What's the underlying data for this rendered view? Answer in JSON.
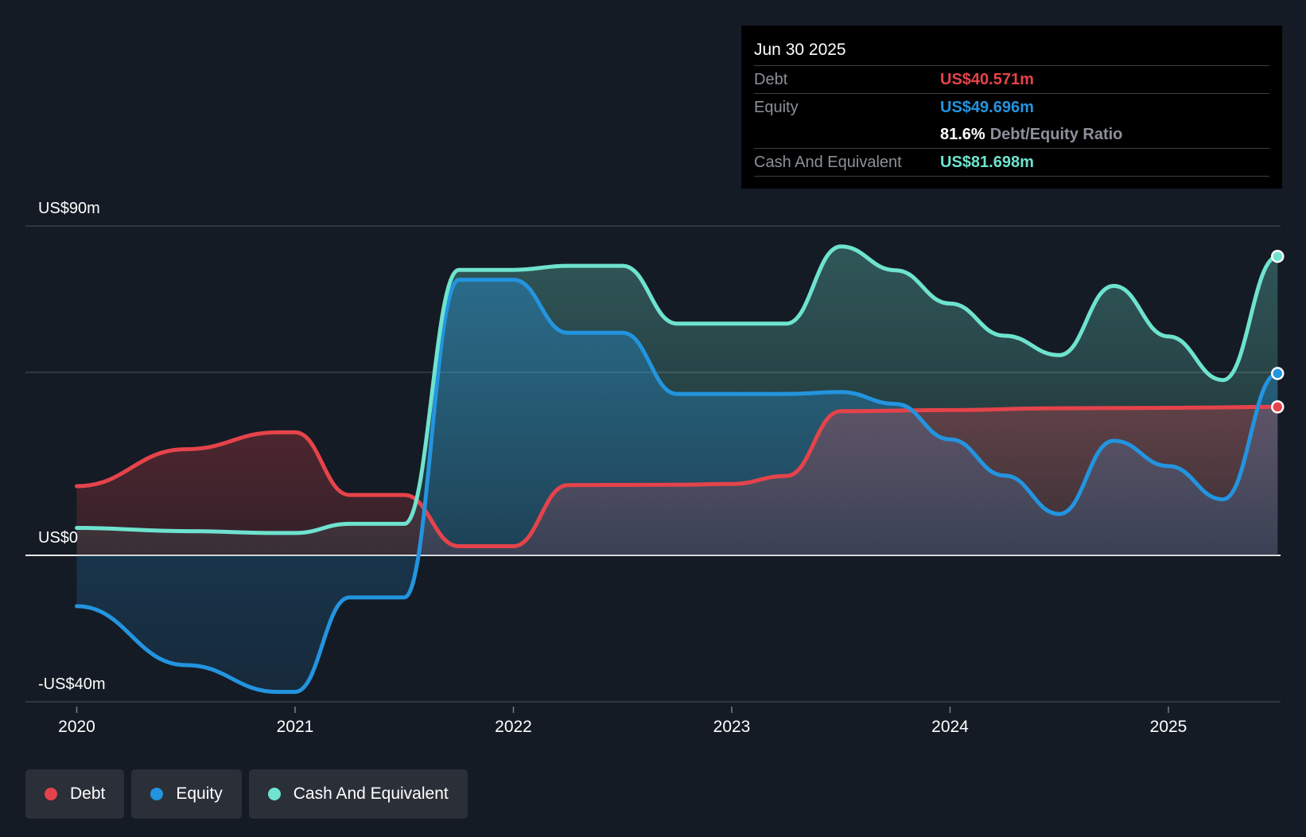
{
  "tooltip": {
    "date": "Jun 30 2025",
    "debt_label": "Debt",
    "debt_value": "US$40.571m",
    "equity_label": "Equity",
    "equity_value": "US$49.696m",
    "ratio_value": "81.6%",
    "ratio_label": "Debt/Equity Ratio",
    "cash_label": "Cash And Equivalent",
    "cash_value": "US$81.698m"
  },
  "legend": {
    "debt": "Debt",
    "equity": "Equity",
    "cash": "Cash And Equivalent"
  },
  "colors": {
    "debt": "#e5434b",
    "equity": "#2394df",
    "cash": "#6ee3cf",
    "background": "#151b24"
  },
  "chart_data": {
    "type": "area",
    "ylim": [
      -40,
      90
    ],
    "y_tick_labels": [
      {
        "value": 90,
        "label": "US$90m"
      },
      {
        "value": 0,
        "label": "US$0"
      },
      {
        "value": -40,
        "label": "-US$40m"
      }
    ],
    "gridlines": [
      90,
      50,
      0,
      -40
    ],
    "x_range": [
      2019.77,
      2025.5
    ],
    "x_ticks": [
      {
        "value": 2020,
        "label": "2020"
      },
      {
        "value": 2021,
        "label": "2021"
      },
      {
        "value": 2022,
        "label": "2022"
      },
      {
        "value": 2023,
        "label": "2023"
      },
      {
        "value": 2024,
        "label": "2024"
      },
      {
        "value": 2025,
        "label": "2025"
      }
    ],
    "series": [
      {
        "name": "Debt",
        "key": "debt",
        "points": [
          [
            2020.0,
            18.9
          ],
          [
            2020.5,
            29.0
          ],
          [
            2020.92,
            33.6
          ],
          [
            2021.0,
            33.6
          ],
          [
            2021.25,
            16.5
          ],
          [
            2021.5,
            16.5
          ],
          [
            2021.75,
            2.5
          ],
          [
            2022.0,
            2.5
          ],
          [
            2022.25,
            19.2
          ],
          [
            2022.75,
            19.3
          ],
          [
            2023.0,
            19.5
          ],
          [
            2023.25,
            21.7
          ],
          [
            2023.5,
            39.4
          ],
          [
            2024.0,
            39.7
          ],
          [
            2024.5,
            40.2
          ],
          [
            2025.0,
            40.3
          ],
          [
            2025.5,
            40.571
          ]
        ]
      },
      {
        "name": "Equity",
        "key": "equity",
        "points": [
          [
            2020.0,
            -13.9
          ],
          [
            2020.5,
            -30.0
          ],
          [
            2020.92,
            -37.3
          ],
          [
            2021.0,
            -37.3
          ],
          [
            2021.25,
            -11.5
          ],
          [
            2021.5,
            -11.5
          ],
          [
            2021.75,
            75.3
          ],
          [
            2022.0,
            75.3
          ],
          [
            2022.25,
            60.8
          ],
          [
            2022.5,
            60.8
          ],
          [
            2022.75,
            44.1
          ],
          [
            2023.0,
            44.1
          ],
          [
            2023.25,
            44.1
          ],
          [
            2023.5,
            44.6
          ],
          [
            2023.75,
            41.4
          ],
          [
            2024.0,
            31.7
          ],
          [
            2024.25,
            21.8
          ],
          [
            2024.5,
            11.3
          ],
          [
            2024.75,
            31.3
          ],
          [
            2025.0,
            24.4
          ],
          [
            2025.25,
            15.3
          ],
          [
            2025.5,
            49.696
          ]
        ]
      },
      {
        "name": "Cash And Equivalent",
        "key": "cash",
        "points": [
          [
            2020.0,
            7.5
          ],
          [
            2020.5,
            6.6
          ],
          [
            2020.92,
            6.1
          ],
          [
            2021.0,
            6.1
          ],
          [
            2021.25,
            8.6
          ],
          [
            2021.5,
            8.6
          ],
          [
            2021.75,
            78.0
          ],
          [
            2022.0,
            78.0
          ],
          [
            2022.25,
            79.1
          ],
          [
            2022.5,
            79.1
          ],
          [
            2022.75,
            63.3
          ],
          [
            2023.0,
            63.3
          ],
          [
            2023.25,
            63.3
          ],
          [
            2023.5,
            84.4
          ],
          [
            2023.75,
            77.9
          ],
          [
            2024.0,
            68.8
          ],
          [
            2024.25,
            60.0
          ],
          [
            2024.5,
            54.7
          ],
          [
            2024.75,
            73.6
          ],
          [
            2025.0,
            59.8
          ],
          [
            2025.25,
            47.9
          ],
          [
            2025.5,
            81.698
          ]
        ]
      }
    ]
  }
}
